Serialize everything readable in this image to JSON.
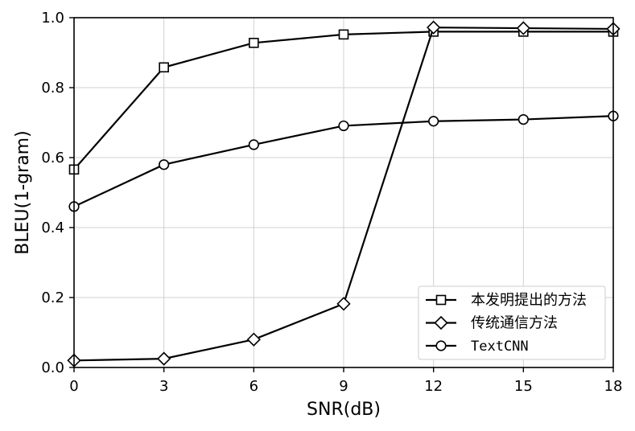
{
  "chart_data": {
    "type": "line",
    "title": "",
    "xlabel": "SNR(dB)",
    "ylabel": "BLEU(1-gram)",
    "x": [
      0,
      3,
      6,
      9,
      12,
      15,
      18
    ],
    "xticks": [
      "0",
      "3",
      "6",
      "9",
      "12",
      "15",
      "18"
    ],
    "yticks": [
      "0.0",
      "0.2",
      "0.4",
      "0.6",
      "0.8",
      "1.0"
    ],
    "xlim": [
      0,
      18
    ],
    "ylim": [
      0,
      1.0
    ],
    "grid": true,
    "legend_position": "bottom-right",
    "series": [
      {
        "name": "本发明提出的方法",
        "marker": "square",
        "values": [
          0.566,
          0.858,
          0.928,
          0.952,
          0.96,
          0.96,
          0.96
        ]
      },
      {
        "name": "传统通信方法",
        "marker": "diamond",
        "values": [
          0.02,
          0.025,
          0.08,
          0.182,
          0.972,
          0.97,
          0.968
        ]
      },
      {
        "name": "TextCNN",
        "marker": "circle",
        "values": [
          0.46,
          0.58,
          0.637,
          0.691,
          0.704,
          0.709,
          0.719
        ]
      }
    ],
    "colors": {
      "line": "#000000",
      "marker_fill": "#ffffff",
      "grid": "#d0d0d0"
    }
  }
}
